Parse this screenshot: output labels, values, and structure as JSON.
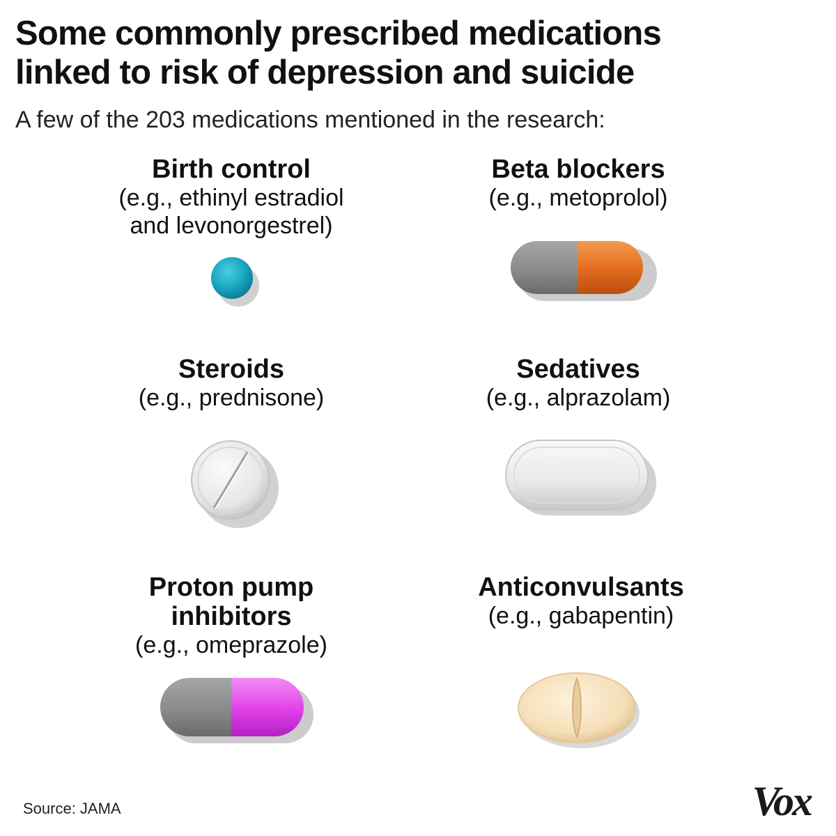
{
  "title": {
    "line1": "Some commonly prescribed medications",
    "line2": "linked to risk of depression and suicide"
  },
  "subtitle": "A few of the 203 medications mentioned in the research:",
  "medications": [
    {
      "name": "Birth control",
      "example_line1": "(e.g., ethinyl estradiol",
      "example_line2": "and levonorgestrel)",
      "pill_icon": "teal-round-pill-icon",
      "color": "#1aa8c2"
    },
    {
      "name": "Beta blockers",
      "example_line1": "(e.g., metoprolol)",
      "pill_icon": "gray-orange-capsule-icon",
      "colors": [
        "#8a8a8a",
        "#e06b1f"
      ]
    },
    {
      "name": "Steroids",
      "example_line1": "(e.g., prednisone)",
      "pill_icon": "white-scored-round-tablet-icon",
      "color": "#e6e6e6"
    },
    {
      "name": "Sedatives",
      "example_line1": "(e.g., alprazolam)",
      "pill_icon": "white-oblong-tablet-icon",
      "color": "#e8e8e8"
    },
    {
      "name_line1": "Proton pump",
      "name_line2": "inhibitors",
      "example_line1": "(e.g., omeprazole)",
      "pill_icon": "gray-magenta-capsule-icon",
      "colors": [
        "#8a8a8a",
        "#e040e8"
      ]
    },
    {
      "name": "Anticonvulsants",
      "example_line1": "(e.g., gabapentin)",
      "pill_icon": "cream-oval-scored-tablet-icon",
      "color": "#f6dfb8"
    }
  ],
  "source": "Source: JAMA",
  "logo": "Vox"
}
